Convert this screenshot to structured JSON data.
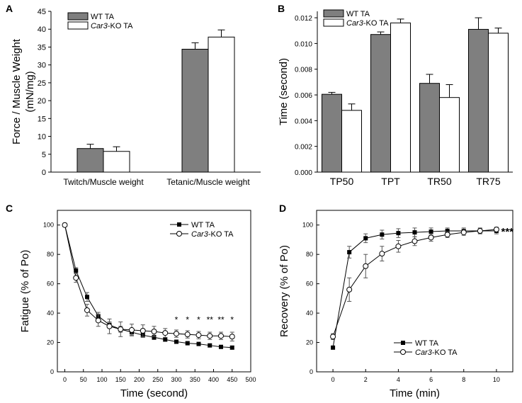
{
  "chart_data": [
    {
      "panel": "A",
      "type": "bar",
      "title": "",
      "xlabel": "",
      "ylabel": "Force / Muscle Weight (mN/mg)",
      "ylim": [
        0,
        45
      ],
      "yticks": [
        0,
        5,
        10,
        15,
        20,
        25,
        30,
        35,
        40,
        45
      ],
      "categories": [
        "Twitch/Muscle weight",
        "Tetanic/Muscle weight"
      ],
      "series": [
        {
          "name": "WT TA",
          "color": "#7f7f7f",
          "values": [
            6.6,
            34.4
          ],
          "errors": [
            1.2,
            1.8
          ]
        },
        {
          "name": "Car3-KO TA",
          "color": "#ffffff",
          "values": [
            5.8,
            37.8
          ],
          "errors": [
            1.3,
            2.0
          ]
        }
      ],
      "legend": [
        {
          "italic": "",
          "text": "WT TA"
        },
        {
          "italic": "Car3",
          "text": "-KO TA"
        }
      ]
    },
    {
      "panel": "B",
      "type": "bar",
      "title": "",
      "xlabel": "",
      "ylabel": "Time (second)",
      "ylim": [
        0,
        0.0125
      ],
      "yticks": [
        "0.000",
        "0.002",
        "0.004",
        "0.006",
        "0.008",
        "0.010",
        "0.012"
      ],
      "categories": [
        "TP50",
        "TPT",
        "TR50",
        "TR75"
      ],
      "series": [
        {
          "name": "WT TA",
          "color": "#7f7f7f",
          "values": [
            0.00605,
            0.0107,
            0.0069,
            0.0111
          ],
          "errors": [
            0.00015,
            0.0002,
            0.0007,
            0.0009
          ]
        },
        {
          "name": "Car3-KO TA",
          "color": "#ffffff",
          "values": [
            0.0048,
            0.0116,
            0.0058,
            0.0108
          ],
          "errors": [
            0.0005,
            0.0003,
            0.001,
            0.0004
          ]
        }
      ],
      "legend": [
        {
          "italic": "",
          "text": "WT TA"
        },
        {
          "italic": "Car3",
          "text": "-KO TA"
        }
      ]
    },
    {
      "panel": "C",
      "type": "line",
      "title": "",
      "xlabel": "Time (second)",
      "ylabel": "Fatigue (% of Po)",
      "xlim": [
        -20,
        500
      ],
      "ylim": [
        0,
        110
      ],
      "xticks": [
        0,
        50,
        100,
        150,
        200,
        250,
        300,
        350,
        400,
        450,
        500
      ],
      "yticks": [
        0,
        20,
        40,
        60,
        80,
        100
      ],
      "x": [
        0,
        30,
        60,
        90,
        120,
        150,
        180,
        210,
        240,
        270,
        300,
        330,
        360,
        390,
        420,
        450
      ],
      "series": [
        {
          "name": "WT TA",
          "marker": "filled-square",
          "values": [
            100,
            69,
            51,
            38,
            32,
            29,
            27,
            25,
            23.5,
            22,
            20.5,
            19.5,
            19,
            18,
            17,
            16.5
          ],
          "errors": [
            0,
            2,
            3,
            2.5,
            2,
            2,
            2,
            1.5,
            1.5,
            1.2,
            1,
            1,
            1,
            1,
            1,
            1
          ]
        },
        {
          "name": "Car3-KO TA",
          "marker": "open-circle",
          "values": [
            100,
            64,
            42,
            35,
            31,
            29,
            28.5,
            28,
            27.5,
            26.5,
            26,
            25.5,
            25,
            24.5,
            24.5,
            24
          ],
          "errors": [
            0,
            3,
            4,
            4,
            5,
            5,
            4,
            4,
            3.5,
            3,
            2.5,
            2.5,
            2.5,
            2.5,
            2.5,
            3
          ]
        }
      ],
      "significance": [
        {
          "x": 300,
          "label": "*"
        },
        {
          "x": 330,
          "label": "*"
        },
        {
          "x": 360,
          "label": "*"
        },
        {
          "x": 390,
          "label": "**"
        },
        {
          "x": 420,
          "label": "**"
        },
        {
          "x": 450,
          "label": "*"
        }
      ],
      "legend": [
        {
          "italic": "",
          "text": "WT TA"
        },
        {
          "italic": "Car3",
          "text": "-KO TA"
        }
      ]
    },
    {
      "panel": "D",
      "type": "line",
      "title": "",
      "xlabel": "Time (min)",
      "ylabel": "Recovery (% of Po)",
      "xlim": [
        -1,
        11
      ],
      "ylim": [
        0,
        110
      ],
      "xticks": [
        0,
        2,
        4,
        6,
        8,
        10
      ],
      "yticks": [
        0,
        20,
        40,
        60,
        80,
        100
      ],
      "x": [
        0,
        1,
        2,
        3,
        4,
        5,
        6,
        7,
        8,
        9,
        10
      ],
      "series": [
        {
          "name": "WT TA",
          "marker": "filled-square",
          "values": [
            16.5,
            81.5,
            91,
            93.5,
            94.5,
            95,
            95.5,
            96,
            96,
            96,
            96
          ],
          "errors": [
            0,
            4,
            3,
            3,
            3,
            3,
            2.5,
            2,
            2,
            2,
            2
          ]
        },
        {
          "name": "Car3-KO TA",
          "marker": "open-circle",
          "values": [
            24,
            56,
            72,
            80.5,
            85.5,
            89,
            91.5,
            93.5,
            95,
            96,
            97
          ],
          "errors": [
            2,
            8,
            8,
            5,
            4,
            3,
            2.5,
            2,
            2,
            1.5,
            1.5
          ]
        }
      ],
      "significance": [
        {
          "x": 10,
          "label": "***"
        }
      ],
      "legend": [
        {
          "italic": "",
          "text": "WT TA"
        },
        {
          "italic": "Car3",
          "text": "-KO TA"
        }
      ]
    }
  ]
}
